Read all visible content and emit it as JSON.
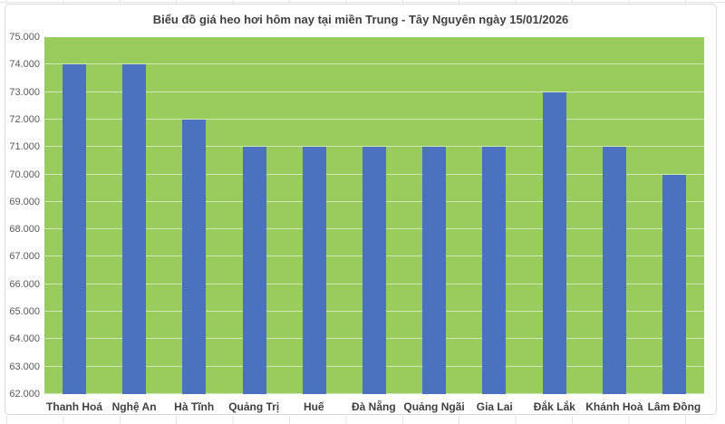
{
  "chart_data": {
    "type": "bar",
    "title": "Biểu đồ giá heo hơi hôm nay tại miền Trung - Tây Nguyên ngày 15/01/2026",
    "categories": [
      "Thanh Hoá",
      "Nghệ An",
      "Hà Tĩnh",
      "Quảng Trị",
      "Huế",
      "Đà Nẵng",
      "Quảng Ngãi",
      "Gia Lai",
      "Đắk Lắk",
      "Khánh Hoà",
      "Lâm Đồng"
    ],
    "values": [
      74000,
      74000,
      72000,
      71000,
      71000,
      71000,
      71000,
      71000,
      73000,
      71000,
      70000
    ],
    "xlabel": "",
    "ylabel": "",
    "ylim": [
      62000,
      75000
    ],
    "y_step": 1000,
    "y_ticks": [
      {
        "label": "75.000",
        "value": 75000
      },
      {
        "label": "74.000",
        "value": 74000
      },
      {
        "label": "73.000",
        "value": 73000
      },
      {
        "label": "72.000",
        "value": 72000
      },
      {
        "label": "71.000",
        "value": 71000
      },
      {
        "label": "70.000",
        "value": 70000
      },
      {
        "label": "69.000",
        "value": 69000
      },
      {
        "label": "68.000",
        "value": 68000
      },
      {
        "label": "67.000",
        "value": 67000
      },
      {
        "label": "66.000",
        "value": 66000
      },
      {
        "label": "65.000",
        "value": 65000
      },
      {
        "label": "64.000",
        "value": 64000
      },
      {
        "label": "63.000",
        "value": 63000
      },
      {
        "label": "62.000",
        "value": 62000
      }
    ],
    "grid": true,
    "legend": "none",
    "colors": {
      "bar": "#4B72C1",
      "plot_background": "#9ACB5D",
      "gridline": "rgba(255,255,255,0.55)",
      "chart_border": "#D9D9D9",
      "title_text": "#404040",
      "y_tick_text": "#595959",
      "x_tick_text": "#3F3F3F",
      "sheet_gridline": "#E3E5E9"
    }
  }
}
